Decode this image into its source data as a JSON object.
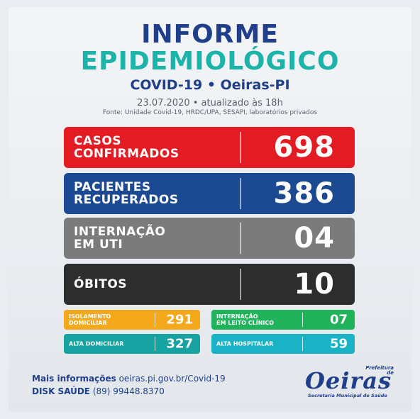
{
  "header": {
    "title_line1": "INFORME",
    "title_line2": "EPIDEMIOLÓGICO",
    "subtitle": "COVID-19 • Oeiras-PI",
    "date": "23.07.2020 • atualizado às 18h",
    "source": "Fonte: Unidade Covid-19, HRDC/UPA, SESAPI, laboratórios privados"
  },
  "cards": {
    "confirmed": {
      "label_line1": "CASOS",
      "label_line2": "CONFIRMADOS",
      "value": "698",
      "color": "#e31b23"
    },
    "recovered": {
      "label_line1": "PACIENTES",
      "label_line2": "RECUPERADOS",
      "value": "386",
      "color": "#1b4a92"
    },
    "uti": {
      "label_line1": "INTERNAÇÃO",
      "label_line2": "EM UTI",
      "value": "04",
      "color": "#7b7b7b"
    },
    "deaths": {
      "label_line1": "ÓBITOS",
      "value": "10",
      "color": "#2d2d2d"
    }
  },
  "small_cards": {
    "isolation": {
      "label_line1": "ISOLAMENTO",
      "label_line2": "DOMICILIAR",
      "value": "291",
      "color": "#f4a81c"
    },
    "clinical_bed": {
      "label_line1": "INTERNAÇÃO",
      "label_line2": "EM LEITO CLÍNICO",
      "value": "07",
      "color": "#20b35b"
    },
    "home_discharge": {
      "label_line1": "ALTA DOMICILIAR",
      "value": "327",
      "color": "#16a3a1"
    },
    "hospital_discharge": {
      "label_line1": "ALTA HOSPITALAR",
      "value": "59",
      "color": "#1ab3c6"
    }
  },
  "footer": {
    "info_label": "Mais informações",
    "info_url": "oeiras.pi.gov.br/Covid-19",
    "disk_label": "DISK SAÚDE",
    "disk_phone": "(89) 99448.8370"
  },
  "logo": {
    "word": "Oeiras",
    "prefeitura": "Prefeitura de",
    "secretaria": "Secretaria Municipal de Saúde"
  }
}
